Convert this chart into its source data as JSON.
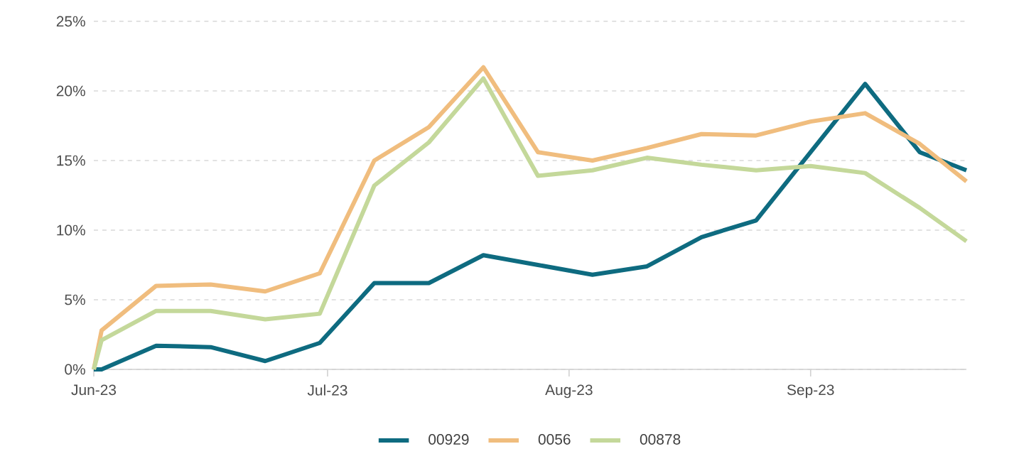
{
  "chart_data": {
    "type": "line",
    "x": [
      "2023-06-01",
      "2023-06-02",
      "2023-06-09",
      "2023-06-16",
      "2023-06-23",
      "2023-06-30",
      "2023-07-07",
      "2023-07-14",
      "2023-07-21",
      "2023-07-28",
      "2023-08-04",
      "2023-08-11",
      "2023-08-18",
      "2023-08-25",
      "2023-09-01",
      "2023-09-08",
      "2023-09-15",
      "2023-09-21"
    ],
    "series": [
      {
        "name": "00929",
        "color": "#0e6b80",
        "values": [
          0,
          0,
          1.7,
          1.6,
          0.6,
          1.9,
          6.2,
          6.2,
          8.2,
          7.5,
          6.8,
          7.4,
          9.5,
          10.7,
          15.6,
          20.5,
          15.6,
          14.3
        ]
      },
      {
        "name": "0056",
        "color": "#f0bd7e",
        "values": [
          0,
          2.8,
          6.0,
          6.1,
          5.6,
          6.9,
          15.0,
          17.4,
          21.7,
          15.6,
          15.0,
          15.9,
          16.9,
          16.8,
          17.8,
          18.4,
          16.2,
          13.5
        ]
      },
      {
        "name": "00878",
        "color": "#c4d89a",
        "values": [
          0,
          2.1,
          4.2,
          4.2,
          3.6,
          4.0,
          13.2,
          16.3,
          20.9,
          13.9,
          14.3,
          15.2,
          14.7,
          14.3,
          14.6,
          14.1,
          11.6,
          9.2
        ]
      }
    ],
    "xlim": [
      "2023-06-01",
      "2023-09-21"
    ],
    "xticks": [
      {
        "value": "2023-06-01",
        "label": "Jun-23"
      },
      {
        "value": "2023-07-01",
        "label": "Jul-23"
      },
      {
        "value": "2023-08-01",
        "label": "Aug-23"
      },
      {
        "value": "2023-09-01",
        "label": "Sep-23"
      }
    ],
    "ylim": [
      0,
      25
    ],
    "yticks": [
      {
        "value": 0,
        "label": "0%"
      },
      {
        "value": 5,
        "label": "5%"
      },
      {
        "value": 10,
        "label": "10%"
      },
      {
        "value": 15,
        "label": "15%"
      },
      {
        "value": 20,
        "label": "20%"
      },
      {
        "value": 25,
        "label": "25%"
      }
    ],
    "grid": "y",
    "legend": "bottom",
    "marker": "none",
    "line_style": "solid"
  }
}
